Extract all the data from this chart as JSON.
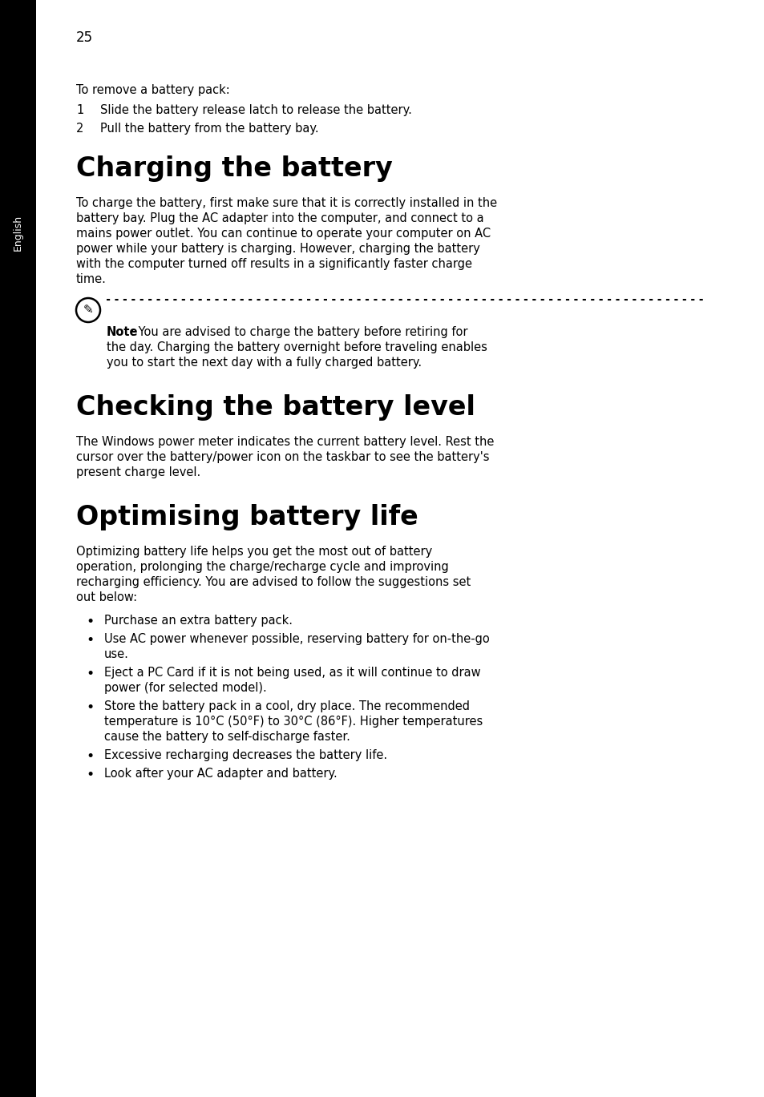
{
  "page_number": "25",
  "sidebar_text": "English",
  "sidebar_bg": "#000000",
  "sidebar_text_color": "#ffffff",
  "bg_color": "#ffffff",
  "text_color": "#000000",
  "heading1": "Charging the battery",
  "heading2": "Checking the battery level",
  "heading3": "Optimising battery life",
  "intro_text": "To remove a battery pack:",
  "step1": "1    Slide the battery release latch to release the battery.",
  "step2": "2    Pull the battery from the battery bay.",
  "note_bold": "Note",
  "note_text": ": You are advised to charge the battery before retiring for",
  "note_text2": "the day. Charging the battery overnight before traveling enables",
  "note_text3": "you to start the next day with a fully charged battery.",
  "bullet1": "Purchase an extra battery pack.",
  "bullet2a": "Use AC power whenever possible, reserving battery for on-the-go",
  "bullet2b": "use.",
  "bullet3a": "Eject a PC Card if it is not being used, as it will continue to draw",
  "bullet3b": "power (for selected model).",
  "bullet4a": "Store the battery pack in a cool, dry place. The recommended",
  "bullet4b": "temperature is 10°C (50°F) to 30°C (86°F). Higher temperatures",
  "bullet4c": "cause the battery to self-discharge faster.",
  "bullet5": "Excessive recharging decreases the battery life.",
  "bullet6": "Look after your AC adapter and battery.",
  "charge_line1": "To charge the battery, first make sure that it is correctly installed in the",
  "charge_line2": "battery bay. Plug the AC adapter into the computer, and connect to a",
  "charge_line3": "mains power outlet. You can continue to operate your computer on AC",
  "charge_line4": "power while your battery is charging. However, charging the battery",
  "charge_line5": "with the computer turned off results in a significantly faster charge",
  "charge_line6": "time.",
  "check_line1": "The Windows power meter indicates the current battery level. Rest the",
  "check_line2": "cursor over the battery/power icon on the taskbar to see the battery's",
  "check_line3": "present charge level.",
  "opt_line1": "Optimizing battery life helps you get the most out of battery",
  "opt_line2": "operation, prolonging the charge/recharge cycle and improving",
  "opt_line3": "recharging efficiency. You are advised to follow the suggestions set",
  "opt_line4": "out below:"
}
